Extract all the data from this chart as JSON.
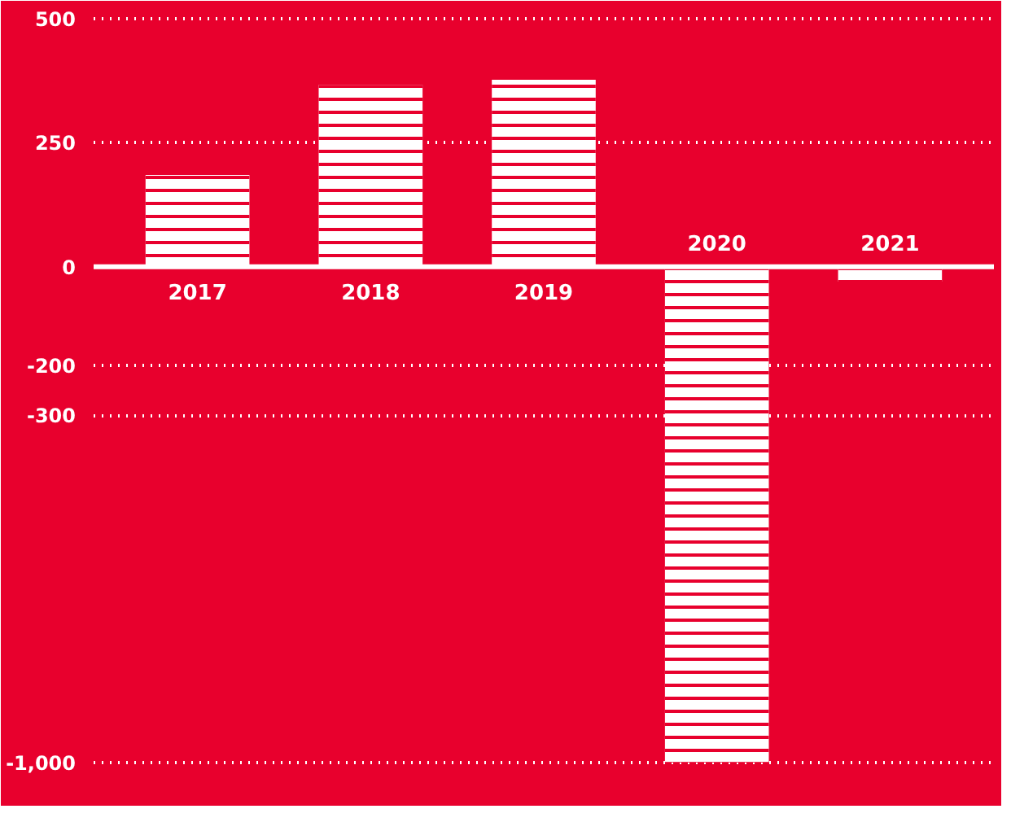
{
  "chart_data": {
    "type": "bar",
    "categories": [
      "2017",
      "2018",
      "2019",
      "2020",
      "2021"
    ],
    "values": [
      185,
      367,
      377,
      -1000,
      -30
    ],
    "color": "#ffffff",
    "ylim": [
      -1040,
      520
    ],
    "yticks": [
      500,
      250,
      0,
      {
        "value": -200,
        "label": "-200"
      },
      {
        "value": -300,
        "label": "-300"
      },
      {
        "value": -1000,
        "label": "-1,000"
      }
    ],
    "grid": "y"
  }
}
